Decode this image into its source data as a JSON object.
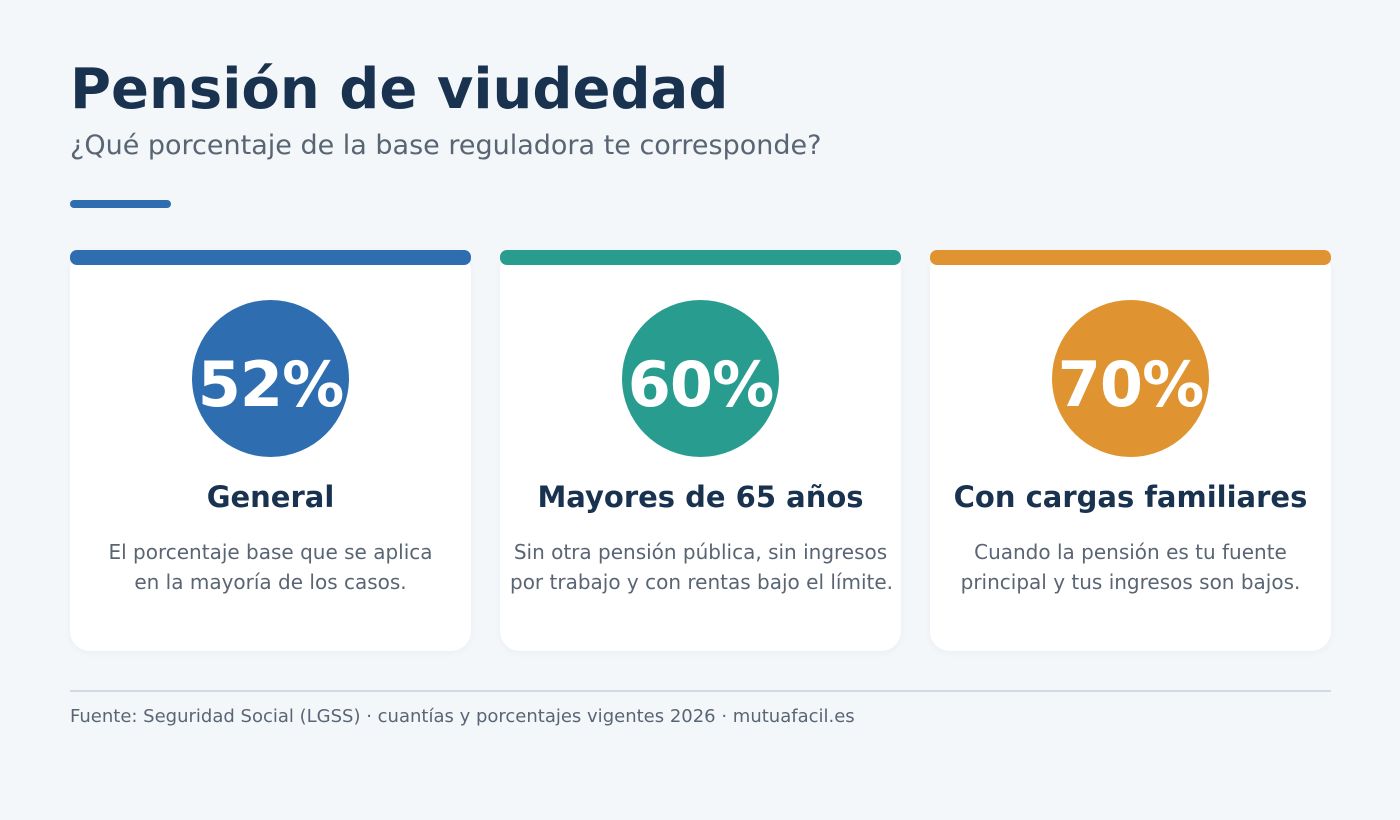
{
  "header": {
    "title": "Pensión de viudedad",
    "subtitle": "¿Qué porcentaje de la base reguladora te corresponde?"
  },
  "colors": {
    "navy": "#19324f",
    "blue": "#2e6eb0",
    "teal": "#289d8f",
    "orange": "#e09431",
    "muted_text": "#5a6574",
    "background": "#f3f7fa"
  },
  "cards": [
    {
      "percent": "52%",
      "title": "General",
      "desc_line1": "El porcentaje base que se aplica",
      "desc_line2": "en la mayoría de los casos.",
      "color": "#2e6eb0"
    },
    {
      "percent": "60%",
      "title": "Mayores de 65 años",
      "desc_line1": "Sin otra pensión pública, sin ingresos",
      "desc_line2": "por trabajo y con rentas bajo el límite.",
      "color": "#289d8f"
    },
    {
      "percent": "70%",
      "title": "Con cargas familiares",
      "desc_line1": "Cuando la pensión es tu fuente",
      "desc_line2": "principal y tus ingresos son bajos.",
      "color": "#e09431"
    }
  ],
  "footer": {
    "source": "Fuente: Seguridad Social (LGSS) · cuantías y porcentajes vigentes 2026 · mutuafacil.es"
  }
}
